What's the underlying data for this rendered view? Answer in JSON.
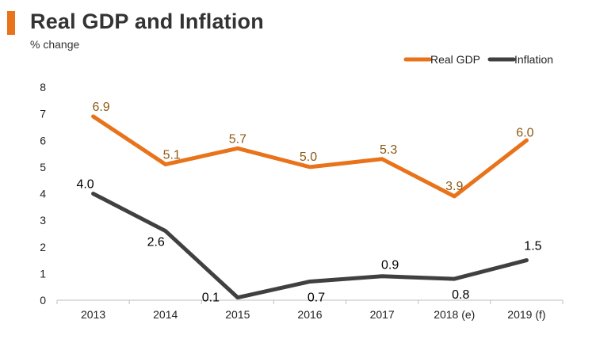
{
  "header": {
    "title": "Real GDP and Inflation",
    "subtitle": "% change",
    "accent_color": "#e8731a"
  },
  "chart_data": {
    "type": "line",
    "title": "Real GDP and Inflation",
    "ylabel": "% change",
    "xlabel": "",
    "categories": [
      "2013",
      "2014",
      "2015",
      "2016",
      "2017",
      "2018 (e)",
      "2019 (f)"
    ],
    "ylim": [
      0,
      8
    ],
    "yticks": [
      "0",
      "1",
      "2",
      "3",
      "4",
      "5",
      "6",
      "7",
      "8"
    ],
    "grid": false,
    "legend_position": "top-right",
    "series": [
      {
        "name": "Real GDP",
        "color": "#e8731a",
        "label_color": "#8c5a14",
        "values": [
          6.9,
          5.1,
          5.7,
          5.0,
          5.3,
          3.9,
          6.0
        ],
        "labels": [
          "6.9",
          "5.1",
          "5.7",
          "5.0",
          "5.3",
          "3.9",
          "6.0"
        ]
      },
      {
        "name": "Inflation",
        "color": "#404040",
        "label_color": "#000000",
        "values": [
          4.0,
          2.6,
          0.1,
          0.7,
          0.9,
          0.8,
          1.5
        ],
        "labels": [
          "4.0",
          "2.6",
          "0.1",
          "0.7",
          "0.9",
          "0.8",
          "1.5"
        ]
      }
    ]
  }
}
